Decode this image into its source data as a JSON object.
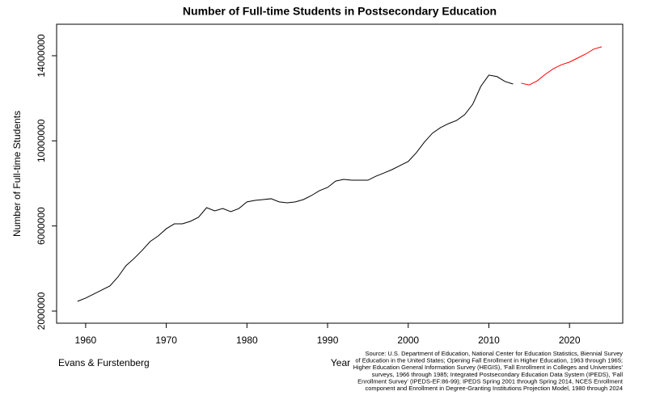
{
  "chart_data": {
    "type": "line",
    "title": "Number of Full-time Students in Postsecondary Education",
    "x_label": "Year",
    "y_label": "Number of Full-time Students",
    "author": "Evans & Furstenberg",
    "source": [
      "Source: U.S. Department of Education, National Center for Education Statistics, Biennial Survey",
      "of Education in the United States; Opening Fall Enrollment in Higher Education, 1963 through 1965;",
      "Higher Education General Information Survey (HEGIS), 'Fall Enrollment in Colleges and Universities'",
      "surveys, 1966 through 1985; Integrated Postsecondary Education Data System (IPEDS), 'Fall",
      "Enrollment Survey' (IPEDS-EF:86-99); IPEDS Spring 2001 through Spring 2014, NCES Enrollment",
      "component and Enrollment in Degree-Granting Institutions Projection Model, 1980 through 2024"
    ],
    "x": [
      1959,
      1960,
      1961,
      1962,
      1963,
      1964,
      1965,
      1966,
      1967,
      1968,
      1969,
      1970,
      1971,
      1972,
      1973,
      1974,
      1975,
      1976,
      1977,
      1978,
      1979,
      1980,
      1981,
      1982,
      1983,
      1984,
      1985,
      1986,
      1987,
      1988,
      1989,
      1990,
      1991,
      1992,
      1993,
      1994,
      1995,
      1996,
      1997,
      1998,
      1999,
      2000,
      2001,
      2002,
      2003,
      2004,
      2005,
      2006,
      2007,
      2008,
      2009,
      2010,
      2011,
      2012,
      2013,
      2014,
      2015,
      2016,
      2017,
      2018,
      2019,
      2020,
      2021,
      2022,
      2023,
      2024
    ],
    "series": [
      {
        "color": "#000000",
        "values": [
          2460000,
          2610000,
          2800000,
          2990000,
          3180000,
          3600000,
          4130000,
          4470000,
          4850000,
          5270000,
          5530000,
          5870000,
          6100000,
          6100000,
          6220000,
          6410000,
          6860000,
          6710000,
          6820000,
          6670000,
          6820000,
          7130000,
          7200000,
          7240000,
          7280000,
          7130000,
          7090000,
          7130000,
          7240000,
          7430000,
          7660000,
          7810000,
          8110000,
          8190000,
          8150000,
          8150000,
          8150000,
          8340000,
          8490000,
          8650000,
          8840000,
          9030000,
          9440000,
          9940000,
          10360000,
          10620000,
          10810000,
          10960000,
          11230000,
          11720000,
          12560000,
          13090000,
          13020000,
          12790000,
          12670000,
          null,
          null,
          null,
          null,
          null,
          null,
          null,
          null,
          null,
          null,
          null
        ]
      },
      {
        "color": "#ff0000",
        "values": [
          null,
          null,
          null,
          null,
          null,
          null,
          null,
          null,
          null,
          null,
          null,
          null,
          null,
          null,
          null,
          null,
          null,
          null,
          null,
          null,
          null,
          null,
          null,
          null,
          null,
          null,
          null,
          null,
          null,
          null,
          null,
          null,
          null,
          null,
          null,
          null,
          null,
          null,
          null,
          null,
          null,
          null,
          null,
          null,
          null,
          null,
          null,
          null,
          null,
          null,
          null,
          null,
          null,
          null,
          null,
          12710000,
          12630000,
          12820000,
          13130000,
          13390000,
          13580000,
          13700000,
          13890000,
          14080000,
          14310000,
          14420000
        ]
      }
    ],
    "xlim": [
      1956.4,
      2026.6
    ],
    "ylim": [
      1430000,
      15480000
    ],
    "xticks": [
      1960,
      1970,
      1980,
      1990,
      2000,
      2010,
      2020
    ],
    "yticks": [
      2000000,
      6000000,
      10000000,
      14000000
    ]
  }
}
